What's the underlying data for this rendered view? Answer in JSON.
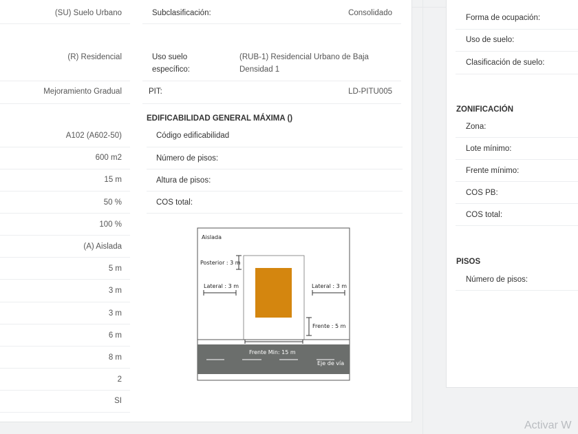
{
  "left_values": [
    "(SU) Suelo Urbano",
    "(R) Residencial",
    "Mejoramiento Gradual",
    "A102 (A602-50)",
    "600 m2",
    "15 m",
    "50 %",
    "100 %",
    "(A) Aislada",
    "5 m",
    "3 m",
    "3 m",
    "6 m",
    "8 m",
    "2",
    "SI"
  ],
  "middle": {
    "subclasificacion_label": "Subclasificación:",
    "subclasificacion_value": "Consolidado",
    "uso_especifico_label_1": "Uso suelo",
    "uso_especifico_label_2": "específico:",
    "uso_especifico_value_1": "(RUB-1) Residencial Urbano de Baja",
    "uso_especifico_value_2": "Densidad 1",
    "pit_label": "PIT:",
    "pit_value": "LD-PITU005",
    "edificabilidad_title": "EDIFICABILIDAD GENERAL MÁXIMA ()",
    "edificabilidad_rows": [
      "Código edificabilidad",
      "Número de pisos:",
      "Altura de pisos:",
      "COS total:"
    ]
  },
  "diagram": {
    "title": "Aislada",
    "posterior": "Posterior : 3 m",
    "lateral_left": "Lateral : 3 m",
    "lateral_right": "Lateral : 3 m",
    "frente": "Frente : 5 m",
    "frente_min": "Frente Min: 15 m",
    "eje_via": "Eje de vía",
    "colors": {
      "building": "#d4860f",
      "road": "#6b6e6c",
      "frame": "#555555"
    }
  },
  "right": {
    "top_rows": [
      "Forma de ocupación:",
      "Uso de suelo:",
      "Clasificación de suelo:"
    ],
    "zonificacion_title": "ZONIFICACIÓN",
    "zonificacion_rows": [
      "Zona:",
      "Lote mínimo:",
      "Frente mínimo:",
      "COS PB:",
      "COS total:"
    ],
    "pisos_title": "PISOS",
    "pisos_rows": [
      "Número de pisos:"
    ]
  },
  "watermark": "Activar W"
}
